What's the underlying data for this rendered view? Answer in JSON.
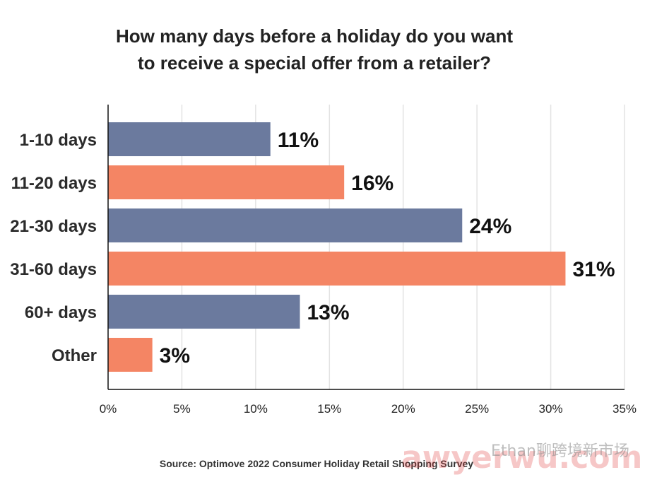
{
  "chart_data": {
    "type": "bar",
    "orientation": "horizontal",
    "title_lines": [
      "How many days before a holiday do you want",
      "to receive a special offer from a retailer?"
    ],
    "categories": [
      "1-10 days",
      "11-20 days",
      "21-30 days",
      "31-60 days",
      "60+ days",
      "Other"
    ],
    "values": [
      11,
      16,
      24,
      31,
      13,
      3
    ],
    "value_labels": [
      "11%",
      "16%",
      "24%",
      "31%",
      "13%",
      "3%"
    ],
    "bar_colors": [
      "#6b7a9e",
      "#f48564",
      "#6b7a9e",
      "#f48564",
      "#6b7a9e",
      "#f48564"
    ],
    "xlim": [
      0,
      35
    ],
    "xticks": [
      0,
      5,
      10,
      15,
      20,
      25,
      30,
      35
    ],
    "xtick_labels": [
      "0%",
      "5%",
      "10%",
      "15%",
      "20%",
      "25%",
      "30%",
      "35%"
    ],
    "grid": true,
    "source": "Source: Optimove 2022 Consumer Holiday Retail Shopping Survey"
  },
  "watermark": {
    "large": "awyerwu.com",
    "small": "Ethan聊跨境新市场"
  }
}
